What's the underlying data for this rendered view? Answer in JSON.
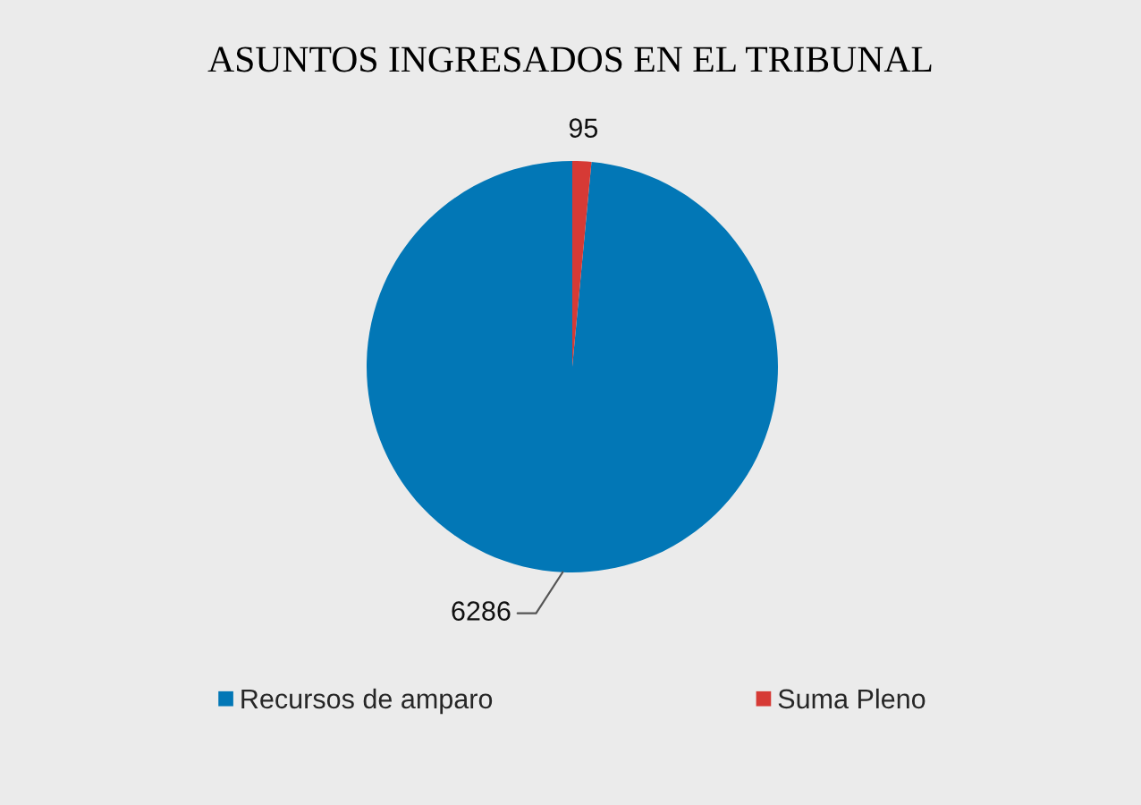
{
  "chart_data": {
    "type": "pie",
    "title": "ASUNTOS INGRESADOS EN EL TRIBUNAL",
    "categories": [
      "Recursos de amparo",
      "Suma Pleno"
    ],
    "values": [
      6286,
      95
    ],
    "colors": [
      "#0277b6",
      "#d63a35"
    ],
    "data_labels": true,
    "legend": "bottom"
  }
}
